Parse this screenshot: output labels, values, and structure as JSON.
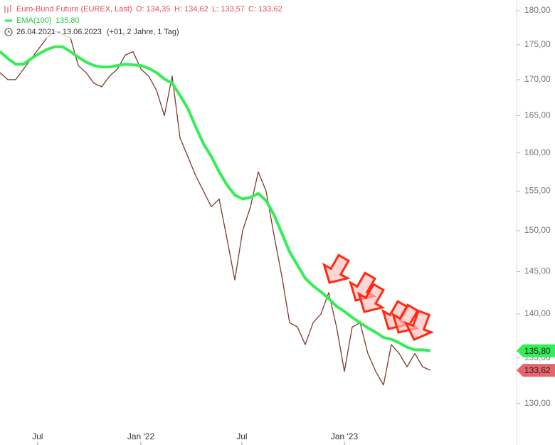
{
  "chart_data": {
    "type": "line",
    "log_scale": true,
    "legend": {
      "title": "Euro-Bund Future (EUREX, Last)",
      "ohlc": [
        "O: 134,35",
        "H: 134,62",
        "L: 133,57",
        "C: 133,62"
      ],
      "range": "26.04.2021 - 13.06.2023",
      "period": "(+01, 2 Jahre, 1 Tag)"
    },
    "xlim": [
      0,
      66
    ],
    "xticks": [
      {
        "value": 4.8,
        "label": "Jul"
      },
      {
        "value": 18,
        "label": "Jan '22"
      },
      {
        "value": 30.9,
        "label": "Jul"
      },
      {
        "value": 44,
        "label": "Jan '23"
      }
    ],
    "ylim": [
      125.6,
      181.6
    ],
    "yticks": [
      {
        "value": 130,
        "label": "130,00"
      },
      {
        "value": 135,
        "label": "135,00"
      },
      {
        "value": 140,
        "label": "140,00"
      },
      {
        "value": 145,
        "label": "145,00"
      },
      {
        "value": 150,
        "label": "150,00"
      },
      {
        "value": 155,
        "label": "155,00"
      },
      {
        "value": 160,
        "label": "160,00"
      },
      {
        "value": 165,
        "label": "165,00"
      },
      {
        "value": 170,
        "label": "170,00"
      },
      {
        "value": 175,
        "label": "175,00"
      },
      {
        "value": 180,
        "label": "180,00"
      }
    ],
    "series": [
      {
        "name": "Euro-Bund Future (EUREX, Last)",
        "color": "#7a3b2e",
        "badge_color": "#e8646a",
        "values": [
          171,
          170,
          170,
          171.5,
          173,
          174.5,
          176,
          177,
          176.5,
          176,
          172,
          171,
          169.5,
          169,
          170.5,
          171.5,
          173.5,
          174,
          171.5,
          170.5,
          168.5,
          165,
          170.5,
          162,
          159.5,
          157,
          155,
          153,
          154,
          149,
          144,
          150,
          153,
          157.5,
          155,
          149.5,
          144.5,
          139,
          138.5,
          136.5,
          139,
          140,
          142.5,
          138.5,
          133.5,
          138.5,
          139,
          135.5,
          133.5,
          132,
          136.5,
          135.5,
          134,
          135.5,
          134,
          133.62
        ],
        "value_labels": [
          null,
          null,
          null,
          null,
          null,
          null,
          null,
          null,
          null,
          null,
          null,
          null,
          null,
          null,
          null,
          null,
          null,
          null,
          null,
          null,
          null,
          null,
          null,
          null,
          null,
          null,
          null,
          null,
          null,
          null,
          null,
          null,
          null,
          null,
          null,
          null,
          null,
          null,
          null,
          null,
          null,
          null,
          null,
          null,
          null,
          null,
          null,
          null,
          null,
          null,
          null,
          null,
          null,
          null,
          null,
          "133,62"
        ]
      },
      {
        "name": "EMA(100)",
        "color": "#33ee55",
        "badge_color": "#33ee55",
        "values": [
          174,
          173,
          172.2,
          172.2,
          173,
          173.7,
          174.3,
          174.7,
          174.7,
          174,
          173.2,
          172.5,
          172,
          171.8,
          171.8,
          172,
          172.2,
          172.1,
          172,
          171.6,
          171,
          170.1,
          169.5,
          167.8,
          166,
          163.5,
          161.2,
          159.5,
          157.5,
          155.8,
          154.5,
          154,
          154.2,
          154.7,
          153.8,
          152,
          149.7,
          147.4,
          145.8,
          144.2,
          143.3,
          142.6,
          141.8,
          140.9,
          140.3,
          139.6,
          139,
          138.4,
          137.9,
          137.3,
          137.1,
          136.7,
          136.2,
          135.9,
          135.9,
          135.8
        ],
        "value_labels": [
          null,
          null,
          null,
          null,
          null,
          null,
          null,
          null,
          null,
          null,
          null,
          null,
          null,
          null,
          null,
          null,
          null,
          null,
          null,
          null,
          null,
          null,
          null,
          null,
          null,
          null,
          null,
          null,
          null,
          null,
          null,
          null,
          null,
          null,
          null,
          null,
          null,
          null,
          null,
          null,
          null,
          null,
          null,
          null,
          null,
          null,
          null,
          null,
          null,
          null,
          null,
          null,
          null,
          null,
          null,
          "135,80"
        ]
      }
    ]
  }
}
